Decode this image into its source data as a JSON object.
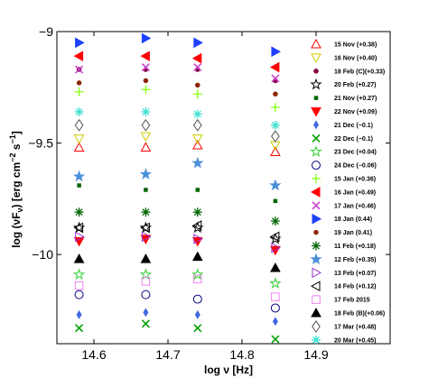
{
  "chart_data": {
    "type": "scatter",
    "xlabel": "log ν [Hz]",
    "ylabel_parts": {
      "pre": "log (νF",
      "sub": "ν",
      "mid": ") [erg cm",
      "sup1": "−2",
      "mid2": " s",
      "sup2": "−1",
      "post": "]"
    },
    "xlim": [
      14.55,
      15.0
    ],
    "ylim": [
      -10.4,
      -9.0
    ],
    "xticks": [
      14.6,
      14.7,
      14.8,
      14.9
    ],
    "xtick_labels": [
      "14.6",
      "14.7",
      "14.8",
      "14.9"
    ],
    "yticks": [
      -9.0,
      -9.5,
      -10.0
    ],
    "ytick_labels": [
      "−9",
      "−9.5",
      "−10"
    ],
    "x": [
      14.58,
      14.67,
      14.74,
      14.845
    ],
    "series": [
      {
        "name": "15 Nov (+0.38)",
        "marker": "triangle-up-open",
        "color": "#ff0000",
        "values": [
          -9.52,
          -9.52,
          -9.51,
          -9.54
        ]
      },
      {
        "name": "16 Nov (+0.40)",
        "marker": "triangle-down-open",
        "color": "#cccc00",
        "values": [
          -9.48,
          -9.47,
          -9.48,
          -9.51
        ]
      },
      {
        "name": "18 Feb (C)(+0.33)",
        "marker": "dot",
        "color": "#800040",
        "values": [
          -9.17,
          -9.17,
          -9.17,
          -9.22
        ]
      },
      {
        "name": "20 Feb (+0.27)",
        "marker": "star-open",
        "color": "#000000",
        "values": [
          -9.88,
          -9.88,
          -9.88,
          -9.93
        ]
      },
      {
        "name": "21 Nov (+0.27)",
        "marker": "square-small",
        "color": "#006400",
        "values": [
          -9.69,
          -9.71,
          -9.71,
          -9.76
        ]
      },
      {
        "name": "22 Nov (+0.09)",
        "marker": "triangle-down-filled",
        "color": "#ff0000",
        "values": [
          -9.94,
          -9.93,
          -9.94,
          -9.98
        ]
      },
      {
        "name": "21 Dec (−0.1)",
        "marker": "diamond-filled",
        "color": "#4169e1",
        "values": [
          -10.27,
          -10.26,
          -10.27,
          -10.3
        ]
      },
      {
        "name": "22 Dec (−0.1)",
        "marker": "x",
        "color": "#00a000",
        "values": [
          -10.33,
          -10.31,
          -10.33,
          -10.38
        ]
      },
      {
        "name": "23 Dec (+0.04)",
        "marker": "star-open",
        "color": "#32cd32",
        "values": [
          -10.09,
          -10.09,
          -10.09,
          -10.13
        ]
      },
      {
        "name": "24 Dec (−0.06)",
        "marker": "circle-open",
        "color": "#000080",
        "values": [
          -10.18,
          -10.18,
          -10.2,
          -10.24
        ]
      },
      {
        "name": "15 Jan (+0.36)",
        "marker": "plus",
        "color": "#7fff00",
        "values": [
          -9.27,
          -9.26,
          -9.28,
          -9.34
        ]
      },
      {
        "name": "16 Jan (+0.49)",
        "marker": "triangle-left-filled",
        "color": "#ff0000",
        "values": [
          -9.11,
          -9.11,
          -9.12,
          -9.16
        ]
      },
      {
        "name": "17 Jan (+0.46)",
        "marker": "x",
        "color": "#cc44cc",
        "values": [
          -9.17,
          -9.16,
          -9.16,
          -9.21
        ]
      },
      {
        "name": "18 Jan (0.44)",
        "marker": "triangle-right-filled",
        "color": "#1e40ff",
        "values": [
          -9.05,
          -9.03,
          -9.05,
          -9.09
        ]
      },
      {
        "name": "19 Jan (0.41)",
        "marker": "dot",
        "color": "#8b2500",
        "values": [
          -9.23,
          -9.22,
          -9.24,
          -9.28
        ]
      },
      {
        "name": "11 Feb (+0.18)",
        "marker": "asterisk",
        "color": "#006400",
        "values": [
          -9.81,
          -9.81,
          -9.81,
          -9.85
        ]
      },
      {
        "name": "12 Feb (+0.35)",
        "marker": "star-filled",
        "color": "#4a90d9",
        "values": [
          -9.65,
          -9.64,
          -9.59,
          -9.69
        ]
      },
      {
        "name": "13 Feb (+0.07)",
        "marker": "triangle-right-open",
        "color": "#9932cc",
        "values": [
          -9.92,
          -9.92,
          -9.93,
          -9.97
        ]
      },
      {
        "name": "14 Feb (+0.12)",
        "marker": "triangle-left-open",
        "color": "#000000",
        "values": [
          -9.88,
          -9.88,
          -9.87,
          -9.92
        ]
      },
      {
        "name": "17 Feb 2015",
        "marker": "square-open",
        "color": "#ee82ee",
        "values": [
          -10.14,
          -10.12,
          -10.11,
          -10.19
        ]
      },
      {
        "name": "18 Feb (B)(+0.06)",
        "marker": "triangle-up-filled",
        "color": "#000000",
        "values": [
          -10.02,
          -10.02,
          -10.01,
          -10.06
        ]
      },
      {
        "name": "17 Mar (+0.48)",
        "marker": "diamond-open",
        "color": "#555555",
        "values": [
          -9.42,
          -9.42,
          -9.42,
          -9.47
        ]
      },
      {
        "name": "20 Mar (+0.45)",
        "marker": "asterisk",
        "color": "#40e0d0",
        "values": [
          -9.36,
          -9.36,
          -9.37,
          -9.42
        ]
      }
    ]
  }
}
